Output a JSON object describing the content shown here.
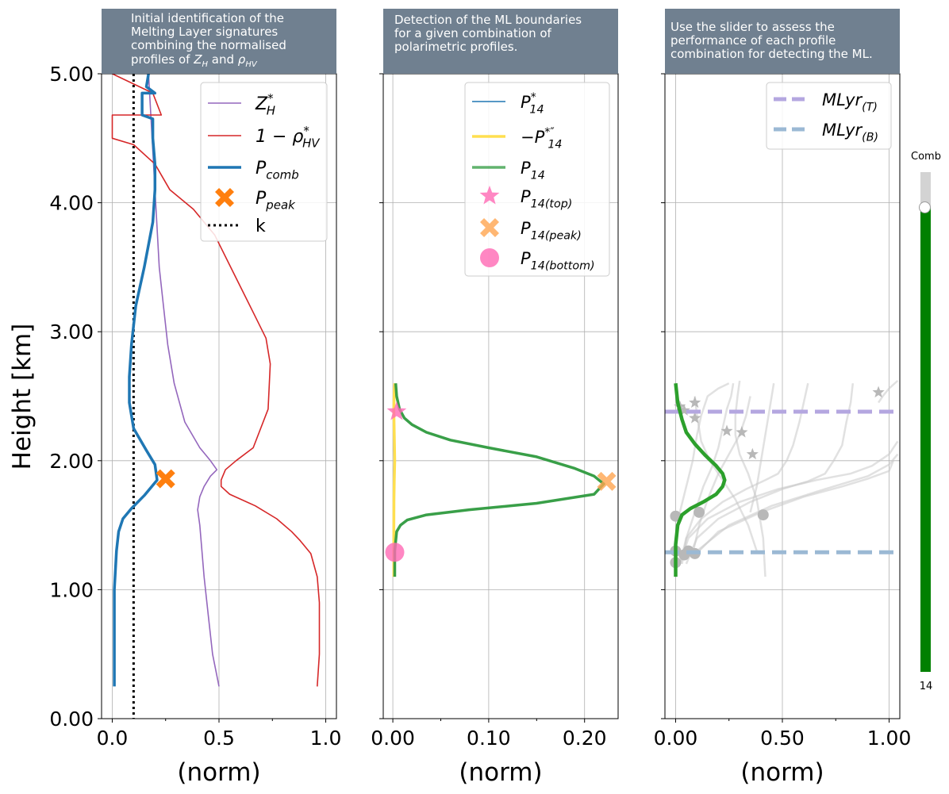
{
  "panels": [
    {
      "title_lines": [
        "Initial identification of the",
        "Melting Layer signatures",
        "combining the normalised"
      ],
      "title_last_prefix": "profiles of ",
      "title_last_z": "Z",
      "title_last_zsub": "H",
      "title_last_mid": " and ",
      "title_last_rho": "ρ",
      "title_last_rhosub": "HV"
    },
    {
      "title_lines": [
        "Detection of the ML boundaries",
        "for a given combination of",
        "polarimetric profiles."
      ]
    },
    {
      "title_lines": [
        "Use the slider to assess the",
        "performance of each profile",
        "combination for detecting the ML."
      ]
    }
  ],
  "y_axis": {
    "label": "Height [km]",
    "ticks": [
      "0.00",
      "1.00",
      "2.00",
      "3.00",
      "4.00",
      "5.00"
    ]
  },
  "slider": {
    "label": "Comb",
    "value": "14",
    "fraction": 0.93
  },
  "chart_data": [
    {
      "type": "line",
      "xlabel": "(norm)",
      "xlim": [
        -0.05,
        1.05
      ],
      "ylim": [
        0,
        5
      ],
      "xticks": [
        "0.0",
        "0.5",
        "1.0"
      ],
      "grid": true,
      "legend_position": "top-right",
      "legend": [
        {
          "main": "Z",
          "sub": "H",
          "sup": "*"
        },
        {
          "main": "1 − ρ",
          "sub": "HV",
          "sup": "*"
        },
        {
          "main": "P",
          "sub": "comb",
          "sup": ""
        },
        {
          "main": "P",
          "sub": "peak",
          "sup": ""
        },
        {
          "main": "k",
          "sub": "",
          "sup": ""
        }
      ],
      "series": [
        {
          "name": "Z_H*",
          "color": "#9467bd",
          "x": [
            0.5,
            0.47,
            0.45,
            0.43,
            0.42,
            0.41,
            0.4,
            0.41,
            0.43,
            0.46,
            0.49,
            0.46,
            0.41,
            0.34,
            0.29,
            0.26,
            0.24,
            0.22,
            0.21,
            0.2,
            0.19,
            0.18,
            0.17
          ],
          "y": [
            0.25,
            0.5,
            0.8,
            1.1,
            1.3,
            1.5,
            1.62,
            1.72,
            1.8,
            1.88,
            1.93,
            2.0,
            2.1,
            2.3,
            2.6,
            2.9,
            3.2,
            3.5,
            3.8,
            4.1,
            4.4,
            4.7,
            5.0
          ]
        },
        {
          "name": "1-rho_HV*",
          "color": "#d62728",
          "x": [
            0.96,
            0.97,
            0.97,
            0.96,
            0.93,
            0.88,
            0.84,
            0.77,
            0.67,
            0.55,
            0.51,
            0.51,
            0.53,
            0.58,
            0.66,
            0.73,
            0.74,
            0.72,
            0.66,
            0.57,
            0.48,
            0.38,
            0.27,
            0.2,
            0.1,
            0.0,
            0.0,
            0.23,
            0.19,
            0.0
          ],
          "y": [
            0.25,
            0.5,
            0.9,
            1.1,
            1.28,
            1.38,
            1.45,
            1.55,
            1.65,
            1.74,
            1.8,
            1.85,
            1.93,
            2.0,
            2.1,
            2.4,
            2.75,
            2.95,
            3.15,
            3.45,
            3.75,
            3.95,
            4.1,
            4.3,
            4.45,
            4.5,
            4.68,
            4.68,
            4.85,
            5.0
          ]
        },
        {
          "name": "P_comb",
          "color": "#1f77b4",
          "x": [
            0.01,
            0.01,
            0.01,
            0.02,
            0.03,
            0.05,
            0.09,
            0.15,
            0.21,
            0.2,
            0.16,
            0.1,
            0.08,
            0.08,
            0.09,
            0.11,
            0.15,
            0.19,
            0.2,
            0.2,
            0.19,
            0.19,
            0.14,
            0.14,
            0.2,
            0.16,
            0.17
          ],
          "y": [
            0.25,
            0.6,
            1.0,
            1.3,
            1.45,
            1.55,
            1.63,
            1.73,
            1.85,
            1.97,
            2.08,
            2.25,
            2.45,
            2.65,
            2.9,
            3.2,
            3.5,
            3.85,
            4.1,
            4.3,
            4.5,
            4.65,
            4.68,
            4.85,
            4.85,
            4.9,
            5.0
          ]
        }
      ],
      "markers": [
        {
          "name": "P_peak",
          "x": 0.25,
          "y": 1.86,
          "color": "#ff7f0e"
        }
      ],
      "vline": {
        "name": "k",
        "x": 0.1
      }
    },
    {
      "type": "line",
      "xlabel": "(norm)",
      "xlim": [
        -0.01,
        0.235
      ],
      "ylim": [
        0,
        5
      ],
      "xticks": [
        "0.00",
        "0.10",
        "0.20"
      ],
      "grid": true,
      "legend_position": "top-right",
      "legend": [
        {
          "main": "P",
          "sub": "14",
          "sup": "*"
        },
        {
          "main": "−P",
          "sub": "14",
          "sup": "*″"
        },
        {
          "main": "P",
          "sub": "14",
          "sup": ""
        },
        {
          "main": "P",
          "sub": "14(top)",
          "sup": ""
        },
        {
          "main": "P",
          "sub": "14(peak)",
          "sup": ""
        },
        {
          "main": "P",
          "sub": "14(bottom)",
          "sup": ""
        }
      ],
      "series": [
        {
          "name": "-P14*''",
          "color": "#ffdf50",
          "x": [
            0.001,
            0.001,
            0.0012,
            0.0015,
            0.002,
            0.0015,
            0.001,
            0.0015,
            0.002
          ],
          "y": [
            1.1,
            1.4,
            1.7,
            1.85,
            2.0,
            2.2,
            2.4,
            2.55,
            2.6
          ]
        },
        {
          "name": "P14",
          "color": "#2e9a3e",
          "x": [
            0.002,
            0.002,
            0.004,
            0.008,
            0.015,
            0.035,
            0.08,
            0.15,
            0.21,
            0.22,
            0.21,
            0.19,
            0.15,
            0.1,
            0.06,
            0.035,
            0.02,
            0.012,
            0.007,
            0.004,
            0.003
          ],
          "y": [
            1.1,
            1.3,
            1.45,
            1.5,
            1.54,
            1.58,
            1.62,
            1.67,
            1.74,
            1.82,
            1.88,
            1.94,
            2.03,
            2.1,
            2.16,
            2.22,
            2.28,
            2.33,
            2.4,
            2.5,
            2.6
          ]
        }
      ],
      "markers": [
        {
          "name": "P14(top)",
          "x": 0.004,
          "y": 2.38,
          "color": "#ff69b4",
          "shape": "star"
        },
        {
          "name": "P14(peak)",
          "x": 0.223,
          "y": 1.84,
          "color": "#ffa550",
          "shape": "x"
        },
        {
          "name": "P14(bottom)",
          "x": 0.002,
          "y": 1.29,
          "color": "#ff69b4",
          "shape": "circle"
        }
      ]
    },
    {
      "type": "line",
      "xlabel": "(norm)",
      "xlim": [
        -0.05,
        1.05
      ],
      "ylim": [
        0,
        5
      ],
      "xticks": [
        "0.00",
        "0.50",
        "1.00"
      ],
      "grid": true,
      "legend_position": "top-right",
      "legend": [
        {
          "main": "MLyr",
          "sub": "(T)",
          "sup": ""
        },
        {
          "main": "MLyr",
          "sub": "(B)",
          "sup": ""
        }
      ],
      "hlines": [
        {
          "name": "MLyr(T)",
          "y": 2.38,
          "color": "#b4a7e0"
        },
        {
          "name": "MLyr(B)",
          "y": 1.29,
          "color": "#9bb9d4"
        }
      ],
      "main_series": {
        "name": "P14",
        "color": "#2ca02c",
        "x": [
          0.0,
          0.0,
          0.01,
          0.03,
          0.07,
          0.13,
          0.19,
          0.22,
          0.23,
          0.22,
          0.19,
          0.14,
          0.09,
          0.05,
          0.03,
          0.01,
          0.0
        ],
        "y": [
          1.1,
          1.35,
          1.5,
          1.58,
          1.63,
          1.68,
          1.74,
          1.8,
          1.85,
          1.9,
          1.96,
          2.04,
          2.13,
          2.22,
          2.32,
          2.45,
          2.6
        ]
      },
      "background_series": [
        {
          "x": [
            0.02,
            0.05,
            0.12,
            0.22,
            0.33,
            0.42,
            0.48,
            0.52,
            0.55,
            0.58,
            0.6,
            0.62
          ],
          "y": [
            1.2,
            1.4,
            1.55,
            1.68,
            1.78,
            1.85,
            1.9,
            2.0,
            2.12,
            2.3,
            2.45,
            2.6
          ]
        },
        {
          "x": [
            0.05,
            0.1,
            0.2,
            0.35,
            0.5,
            0.62,
            0.7,
            0.74,
            0.78,
            0.8,
            0.82,
            0.83
          ],
          "y": [
            1.2,
            1.4,
            1.55,
            1.68,
            1.78,
            1.84,
            1.9,
            2.0,
            2.12,
            2.3,
            2.45,
            2.6
          ]
        },
        {
          "x": [
            0.08,
            0.2,
            0.4,
            0.6,
            0.78,
            0.9,
            1.0,
            1.02
          ],
          "y": [
            1.25,
            1.45,
            1.6,
            1.72,
            1.8,
            1.86,
            1.92,
            2.0
          ]
        },
        {
          "x": [
            0.1,
            0.25,
            0.45,
            0.7,
            0.9,
            1.0,
            1.04
          ],
          "y": [
            1.3,
            1.5,
            1.65,
            1.78,
            1.88,
            1.97,
            2.05
          ]
        },
        {
          "x": [
            0.42,
            0.41,
            0.38,
            0.34,
            0.3,
            0.28,
            0.28,
            0.29,
            0.3
          ],
          "y": [
            1.1,
            1.4,
            1.7,
            1.9,
            2.05,
            2.2,
            2.35,
            2.5,
            2.62
          ]
        },
        {
          "x": [
            0.03,
            0.05,
            0.09,
            0.13,
            0.17,
            0.2,
            0.22,
            0.24,
            0.26,
            0.27
          ],
          "y": [
            1.2,
            1.4,
            1.6,
            1.8,
            1.95,
            2.1,
            2.25,
            2.4,
            2.5,
            2.6
          ]
        },
        {
          "x": [
            0.0,
            0.0,
            0.02,
            0.05,
            0.08,
            0.1,
            0.12,
            0.15,
            0.2,
            0.25
          ],
          "y": [
            1.15,
            1.4,
            1.6,
            1.8,
            2.0,
            2.2,
            2.35,
            2.5,
            2.56,
            2.6
          ]
        },
        {
          "x": [
            0.08,
            0.11,
            0.15,
            0.2,
            0.25,
            0.3,
            0.33,
            0.35
          ],
          "y": [
            1.28,
            1.5,
            1.7,
            1.9,
            2.05,
            2.2,
            2.35,
            2.5
          ]
        },
        {
          "x": [
            0.38,
            0.34,
            0.28,
            0.22,
            0.16,
            0.12,
            0.1,
            0.09
          ],
          "y": [
            1.3,
            1.5,
            1.7,
            1.85,
            2.0,
            2.15,
            2.35,
            2.5
          ]
        },
        {
          "x": [
            0.02,
            0.06,
            0.15,
            0.3,
            0.48,
            0.66,
            0.82,
            0.92,
            1.0,
            1.04
          ],
          "y": [
            1.2,
            1.4,
            1.55,
            1.68,
            1.78,
            1.85,
            1.9,
            1.96,
            2.05,
            2.15
          ]
        },
        {
          "x": [
            0.35,
            0.38,
            0.4,
            0.42,
            0.44,
            0.46
          ],
          "y": [
            1.6,
            1.8,
            2.0,
            2.2,
            2.4,
            2.6
          ]
        },
        {
          "x": [
            0.95,
            0.97,
            1.0,
            1.04
          ],
          "y": [
            2.45,
            2.5,
            2.56,
            2.62
          ]
        }
      ],
      "stars": [
        {
          "x": 0.02,
          "y": 2.42
        },
        {
          "x": 0.09,
          "y": 2.45
        },
        {
          "x": 0.09,
          "y": 2.33
        },
        {
          "x": 0.24,
          "y": 2.23
        },
        {
          "x": 0.31,
          "y": 2.22
        },
        {
          "x": 0.36,
          "y": 2.05
        },
        {
          "x": 0.95,
          "y": 2.53
        },
        {
          "x": 0.04,
          "y": 2.39
        }
      ],
      "circles": [
        {
          "x": 0.0,
          "y": 1.57
        },
        {
          "x": 0.11,
          "y": 1.6
        },
        {
          "x": 0.41,
          "y": 1.58
        },
        {
          "x": 0.0,
          "y": 1.3
        },
        {
          "x": 0.06,
          "y": 1.3
        },
        {
          "x": 0.09,
          "y": 1.28
        },
        {
          "x": 0.04,
          "y": 1.27
        },
        {
          "x": 0.0,
          "y": 1.21
        }
      ]
    }
  ]
}
